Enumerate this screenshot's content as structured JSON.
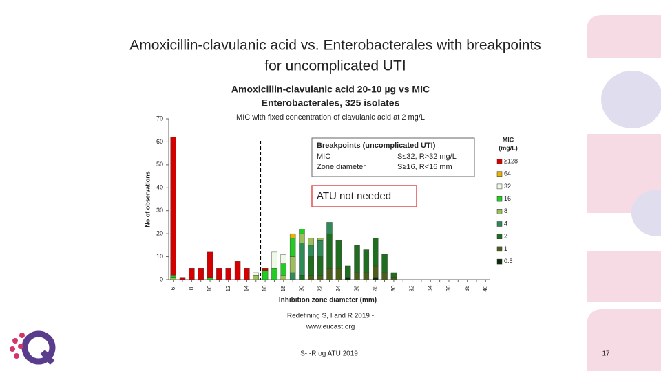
{
  "slide": {
    "title": [
      "Amoxicillin-clavulanic acid vs. Enterobacterales with breakpoints",
      "for uncomplicated UTI"
    ],
    "source": [
      "Redefining S, I and R 2019 -",
      "www.eucast.org"
    ],
    "footer": "S-I-R og ATU 2019",
    "page_number": "17"
  },
  "chart_data": {
    "type": "stacked_bar",
    "title": [
      "Amoxicillin-clavulanic  acid 20-10 µg vs MIC",
      "Enterobacterales, 325 isolates"
    ],
    "subtitle": "MIC with fixed concentration of clavulanic acid at 2 mg/L",
    "y_label": "No of observations",
    "x_label": "Inhibition zone diameter (mm)",
    "legend_title": [
      "MIC",
      "(mg/L)"
    ],
    "categories": [
      6,
      null,
      8,
      null,
      10,
      null,
      12,
      null,
      14,
      null,
      16,
      null,
      18,
      null,
      20,
      null,
      22,
      null,
      24,
      null,
      26,
      null,
      28,
      null,
      30,
      null,
      32,
      null,
      34,
      null,
      36,
      null,
      38,
      null,
      40
    ],
    "ylim": [
      0,
      70
    ],
    "yticks": [
      0,
      10,
      20,
      30,
      40,
      50,
      60,
      70
    ],
    "breakpoint_x": 15.5,
    "annotation_box": {
      "title": "Breakpoints (uncomplicated UTI)",
      "rows": [
        [
          "MIC",
          "S≤32, R>32 mg/L"
        ],
        [
          "Zone diameter",
          "S≥16, R<16 mm"
        ]
      ]
    },
    "annotation": "ATU not needed",
    "series": [
      {
        "name": "≥128",
        "color": "#d40000",
        "values": [
          60,
          1,
          5,
          5,
          11,
          5,
          5,
          8,
          5,
          0,
          1,
          0,
          0,
          0,
          0,
          0,
          0,
          0,
          0,
          0,
          0,
          0,
          0,
          0,
          0,
          0,
          0,
          0,
          0,
          0,
          0,
          0,
          0,
          0,
          0
        ]
      },
      {
        "name": "64",
        "color": "#e8b400",
        "values": [
          0,
          0,
          0,
          0,
          0,
          0,
          0,
          0,
          0,
          0,
          0,
          0,
          0,
          2,
          0,
          0,
          0,
          0,
          0,
          0,
          0,
          0,
          0,
          0,
          0,
          0,
          0,
          0,
          0,
          0,
          0,
          0,
          0,
          0,
          0
        ]
      },
      {
        "name": "32",
        "color": "#eef9e6",
        "values": [
          0,
          0,
          0,
          0,
          0,
          0,
          0,
          0,
          0,
          1,
          0,
          7,
          4,
          0,
          0,
          0,
          0,
          0,
          0,
          0,
          0,
          0,
          0,
          0,
          0,
          0,
          0,
          0,
          0,
          0,
          0,
          0,
          0,
          0,
          0
        ]
      },
      {
        "name": "16",
        "color": "#22cc22",
        "values": [
          1,
          0,
          0,
          0,
          1,
          0,
          0,
          0,
          0,
          0,
          4,
          5,
          5,
          8,
          2,
          0,
          0,
          0,
          0,
          0,
          0,
          0,
          0,
          0,
          0,
          0,
          0,
          0,
          0,
          0,
          0,
          0,
          0,
          0,
          0
        ]
      },
      {
        "name": "8",
        "color": "#9cbf5a",
        "values": [
          1,
          0,
          0,
          0,
          0,
          0,
          0,
          0,
          0,
          2,
          0,
          0,
          2,
          7,
          4,
          3,
          1,
          0,
          0,
          0,
          0,
          0,
          0,
          0,
          0,
          0,
          0,
          0,
          0,
          0,
          0,
          0,
          0,
          0,
          0
        ]
      },
      {
        "name": "4",
        "color": "#2e8b57",
        "values": [
          0,
          0,
          0,
          0,
          0,
          0,
          0,
          0,
          0,
          0,
          0,
          0,
          0,
          3,
          14,
          5,
          7,
          5,
          0,
          0,
          0,
          0,
          0,
          0,
          0,
          0,
          0,
          0,
          0,
          0,
          0,
          0,
          0,
          0,
          0
        ]
      },
      {
        "name": "2",
        "color": "#1f6e1f",
        "values": [
          0,
          0,
          0,
          0,
          0,
          0,
          0,
          0,
          0,
          0,
          0,
          0,
          0,
          0,
          2,
          8,
          8,
          15,
          12,
          5,
          12,
          10,
          12,
          8,
          2,
          0,
          0,
          0,
          0,
          0,
          0,
          0,
          0,
          0,
          0
        ]
      },
      {
        "name": "1",
        "color": "#4a5e1a",
        "values": [
          0,
          0,
          0,
          0,
          0,
          0,
          0,
          0,
          0,
          0,
          0,
          0,
          0,
          0,
          0,
          2,
          2,
          5,
          5,
          0,
          3,
          3,
          5,
          3,
          1,
          0,
          0,
          0,
          0,
          0,
          0,
          0,
          0,
          0,
          0
        ]
      },
      {
        "name": "0.5",
        "color": "#0a2a0a",
        "values": [
          0,
          0,
          0,
          0,
          0,
          0,
          0,
          0,
          0,
          0,
          0,
          0,
          0,
          0,
          0,
          0,
          0,
          0,
          0,
          1,
          0,
          0,
          1,
          0,
          0,
          0,
          0,
          0,
          0,
          0,
          0,
          0,
          0,
          0,
          0
        ]
      }
    ]
  }
}
